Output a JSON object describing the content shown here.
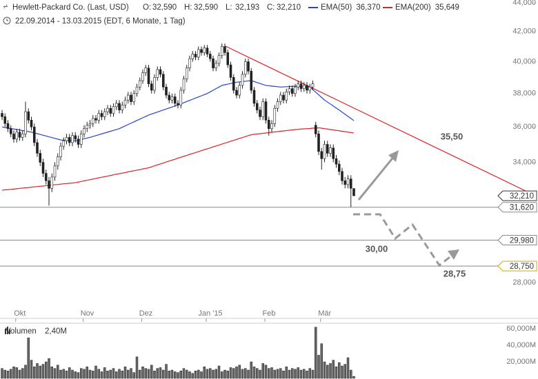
{
  "chart_data": [
    {
      "type": "candlestick",
      "title": "Hewlett-Packard Co. (Last, USD)",
      "quote": [
        {
          "key": "O:",
          "label": "32,590"
        },
        {
          "key": "H:",
          "label": "32,590"
        },
        {
          "key": "L:",
          "label": "32,193"
        },
        {
          "key": "C:",
          "label": "32,210"
        }
      ],
      "subtitle": "22.09.2014 - 13.03.2015 (EDT, 6 Monate, 1 Tag)",
      "categories": [
        null,
        null,
        null,
        null,
        null,
        null,
        null,
        "Okt",
        null,
        null,
        null,
        null,
        null,
        null,
        null,
        null,
        null,
        null,
        null,
        null,
        null,
        null,
        null,
        null,
        null,
        null,
        null,
        null,
        null,
        null,
        "Nov",
        null,
        null,
        null,
        null,
        null,
        null,
        null,
        null,
        null,
        null,
        null,
        null,
        null,
        null,
        null,
        null,
        null,
        null,
        null,
        "Dez",
        null,
        null,
        null,
        null,
        null,
        null,
        null,
        null,
        null,
        null,
        null,
        null,
        null,
        null,
        null,
        null,
        null,
        null,
        null,
        null,
        null,
        "Jan '15",
        null,
        null,
        null,
        null,
        null,
        null,
        null,
        null,
        null,
        null,
        null,
        null,
        null,
        null,
        null,
        null,
        null,
        null,
        null,
        "Feb",
        null,
        null,
        null,
        null,
        null,
        null,
        null,
        null,
        null,
        null,
        null,
        null,
        null,
        null,
        null,
        null,
        null,
        null,
        "Mär",
        null,
        null,
        null,
        null,
        null,
        null,
        null,
        null,
        null
      ],
      "open": [
        36.8,
        36.6,
        36.2,
        35.9,
        35.6,
        35.3,
        35.7,
        35.4,
        35.6,
        36.9,
        36.4,
        36.0,
        35.1,
        34.5,
        34.0,
        33.4,
        33.0,
        32.6,
        33.2,
        33.8,
        34.3,
        34.9,
        35.2,
        35.4,
        35.1,
        35.5,
        35.3,
        35.0,
        35.6,
        35.9,
        36.1,
        36.2,
        36.5,
        36.4,
        36.8,
        36.6,
        36.9,
        37.1,
        36.8,
        37.2,
        37.4,
        37.0,
        37.3,
        37.6,
        37.9,
        37.5,
        38.0,
        38.4,
        38.8,
        39.3,
        39.6,
        38.6,
        38.2,
        39.0,
        39.5,
        39.2,
        38.4,
        37.9,
        37.6,
        37.8,
        37.4,
        37.3,
        38.2,
        38.9,
        39.6,
        40.2,
        40.5,
        40.3,
        40.8,
        40.6,
        40.9,
        40.5,
        40.2,
        39.6,
        39.9,
        40.4,
        41.0,
        40.6,
        39.8,
        39.0,
        38.2,
        37.9,
        38.5,
        39.2,
        40.0,
        39.4,
        38.2,
        37.4,
        37.0,
        36.6,
        37.5,
        36.4,
        35.9,
        36.2,
        37.1,
        37.5,
        37.9,
        37.6,
        38.1,
        38.3,
        38.0,
        38.4,
        38.6,
        38.3,
        38.5,
        38.2,
        38.4,
        36.1,
        35.6,
        34.6,
        34.2,
        35.0,
        34.5,
        34.8,
        34.2,
        33.9,
        33.5,
        33.0,
        32.8,
        33.1,
        32.59
      ],
      "high": [
        37.0,
        36.8,
        36.4,
        36.1,
        35.8,
        35.9,
        35.9,
        35.8,
        37.5,
        37.1,
        36.6,
        36.2,
        35.3,
        34.7,
        34.2,
        33.6,
        33.2,
        33.4,
        34.0,
        34.5,
        35.1,
        35.4,
        35.6,
        35.6,
        35.7,
        35.7,
        35.5,
        35.8,
        36.1,
        36.3,
        36.4,
        36.7,
        36.7,
        37.0,
        37.0,
        37.1,
        37.3,
        37.3,
        37.4,
        37.6,
        37.6,
        37.5,
        37.8,
        38.1,
        38.1,
        38.2,
        38.6,
        39.0,
        39.5,
        39.8,
        39.8,
        38.8,
        39.2,
        39.7,
        39.7,
        39.4,
        38.6,
        38.1,
        38.0,
        38.0,
        37.6,
        38.4,
        39.1,
        39.8,
        40.4,
        40.7,
        40.7,
        41.0,
        41.0,
        41.1,
        41.1,
        40.7,
        40.4,
        40.1,
        40.6,
        41.2,
        41.2,
        40.8,
        40.0,
        39.2,
        38.4,
        38.7,
        39.4,
        40.2,
        40.2,
        39.6,
        38.4,
        37.6,
        37.2,
        37.7,
        37.7,
        36.6,
        36.4,
        37.3,
        37.7,
        38.1,
        38.1,
        38.3,
        38.5,
        38.5,
        38.6,
        38.8,
        38.8,
        38.7,
        38.7,
        38.6,
        38.8,
        36.3,
        35.8,
        34.8,
        35.2,
        35.2,
        35.0,
        35.0,
        34.4,
        34.1,
        33.7,
        33.2,
        33.3,
        33.3,
        32.59
      ],
      "low": [
        36.4,
        36.0,
        35.7,
        35.4,
        35.1,
        35.1,
        35.2,
        35.2,
        35.4,
        36.2,
        35.8,
        34.9,
        34.3,
        33.8,
        33.2,
        32.8,
        31.7,
        32.4,
        33.0,
        33.6,
        34.1,
        34.7,
        35.0,
        34.9,
        34.9,
        35.1,
        34.8,
        34.8,
        35.4,
        35.7,
        35.9,
        36.0,
        36.2,
        36.2,
        36.4,
        36.4,
        36.7,
        36.6,
        36.6,
        37.0,
        36.8,
        36.8,
        37.1,
        37.4,
        37.3,
        37.3,
        37.8,
        38.2,
        38.6,
        39.1,
        38.4,
        38.0,
        38.0,
        38.8,
        39.0,
        38.2,
        37.7,
        37.4,
        37.4,
        37.2,
        37.1,
        37.1,
        38.0,
        38.7,
        39.4,
        40.0,
        40.1,
        40.1,
        40.4,
        40.4,
        40.3,
        40.0,
        39.4,
        39.4,
        39.7,
        40.2,
        40.4,
        39.6,
        38.8,
        38.0,
        37.7,
        37.7,
        38.3,
        39.0,
        39.2,
        38.0,
        37.2,
        36.8,
        36.4,
        36.4,
        36.2,
        35.5,
        35.7,
        36.0,
        36.9,
        37.3,
        37.4,
        37.4,
        37.9,
        37.8,
        37.8,
        38.2,
        38.1,
        38.1,
        38.0,
        38.0,
        38.2,
        35.4,
        34.4,
        33.6,
        34.0,
        34.3,
        34.3,
        34.0,
        33.7,
        33.3,
        32.8,
        32.6,
        32.6,
        31.62,
        32.193
      ],
      "close": [
        36.6,
        36.2,
        35.9,
        35.6,
        35.3,
        35.7,
        35.4,
        35.6,
        36.9,
        36.4,
        36.0,
        35.1,
        34.5,
        34.0,
        33.4,
        33.0,
        32.6,
        33.2,
        33.8,
        34.3,
        34.9,
        35.2,
        35.4,
        35.1,
        35.5,
        35.3,
        35.0,
        35.6,
        35.9,
        36.1,
        36.2,
        36.5,
        36.4,
        36.8,
        36.6,
        36.9,
        37.1,
        36.8,
        37.2,
        37.4,
        37.0,
        37.3,
        37.6,
        37.9,
        37.5,
        38.0,
        38.4,
        38.8,
        39.3,
        39.6,
        38.6,
        38.2,
        39.0,
        39.5,
        39.2,
        38.4,
        37.9,
        37.6,
        37.8,
        37.4,
        37.3,
        38.2,
        38.9,
        39.6,
        40.2,
        40.5,
        40.3,
        40.8,
        40.6,
        40.9,
        40.5,
        40.2,
        39.6,
        39.9,
        40.4,
        41.0,
        40.6,
        39.8,
        39.0,
        38.2,
        37.9,
        38.5,
        39.2,
        40.0,
        39.4,
        38.2,
        37.4,
        37.0,
        36.6,
        37.5,
        36.4,
        35.9,
        36.2,
        37.1,
        37.5,
        37.9,
        37.6,
        38.1,
        38.3,
        38.0,
        38.4,
        38.6,
        38.3,
        38.5,
        38.2,
        38.4,
        38.6,
        35.6,
        34.6,
        34.2,
        35.0,
        34.5,
        34.8,
        34.2,
        33.9,
        33.5,
        33.0,
        32.8,
        33.1,
        32.6,
        32.21
      ],
      "last_label": "32,210",
      "series": [
        {
          "name": "EMA(50)",
          "color": "#2244cc",
          "value_label": "36,370",
          "values": [
            36.0,
            35.97,
            35.94,
            35.91,
            35.88,
            35.85,
            35.82,
            35.79,
            35.76,
            35.73,
            35.7,
            35.66,
            35.61,
            35.57,
            35.52,
            35.48,
            35.43,
            35.39,
            35.34,
            35.3,
            35.25,
            35.24,
            35.23,
            35.22,
            35.21,
            35.2,
            35.24,
            35.28,
            35.32,
            35.36,
            35.4,
            35.45,
            35.5,
            35.55,
            35.6,
            35.65,
            35.7,
            35.75,
            35.8,
            35.85,
            35.9,
            35.98,
            36.06,
            36.14,
            36.22,
            36.3,
            36.38,
            36.46,
            36.54,
            36.62,
            36.7,
            36.76,
            36.82,
            36.88,
            36.94,
            37.0,
            37.06,
            37.12,
            37.18,
            37.24,
            37.3,
            37.37,
            37.44,
            37.51,
            37.58,
            37.65,
            37.72,
            37.79,
            37.86,
            37.93,
            38.0,
            38.1,
            38.2,
            38.3,
            38.4,
            38.5,
            38.54,
            38.58,
            38.62,
            38.66,
            38.7,
            38.72,
            38.74,
            38.76,
            38.78,
            38.8,
            38.74,
            38.68,
            38.62,
            38.56,
            38.5,
            38.48,
            38.46,
            38.44,
            38.42,
            38.4,
            38.41,
            38.42,
            38.43,
            38.44,
            38.45,
            38.44,
            38.43,
            38.42,
            38.41,
            38.4,
            38.24,
            38.08,
            37.92,
            37.76,
            37.6,
            37.48,
            37.36,
            37.24,
            37.12,
            37.0,
            36.87,
            36.75,
            36.62,
            36.5,
            36.37
          ]
        },
        {
          "name": "EMA(200)",
          "color": "#dd2222",
          "value_label": "35,649",
          "values": [
            32.5,
            32.52,
            32.53,
            32.55,
            32.56,
            32.58,
            32.6,
            32.61,
            32.63,
            32.64,
            32.66,
            32.68,
            32.69,
            32.71,
            32.72,
            32.74,
            32.76,
            32.77,
            32.79,
            32.8,
            32.82,
            32.84,
            32.85,
            32.87,
            32.88,
            32.9,
            32.93,
            32.96,
            33.0,
            33.03,
            33.06,
            33.09,
            33.12,
            33.16,
            33.19,
            33.22,
            33.25,
            33.28,
            33.32,
            33.35,
            33.38,
            33.41,
            33.44,
            33.48,
            33.51,
            33.54,
            33.57,
            33.6,
            33.64,
            33.67,
            33.7,
            33.75,
            33.81,
            33.86,
            33.91,
            33.96,
            34.02,
            34.07,
            34.12,
            34.17,
            34.23,
            34.28,
            34.33,
            34.38,
            34.44,
            34.49,
            34.54,
            34.59,
            34.65,
            34.7,
            34.75,
            34.8,
            34.86,
            34.91,
            34.96,
            35.02,
            35.07,
            35.12,
            35.18,
            35.23,
            35.28,
            35.34,
            35.39,
            35.44,
            35.5,
            35.55,
            35.57,
            35.59,
            35.61,
            35.63,
            35.65,
            35.67,
            35.69,
            35.71,
            35.73,
            35.75,
            35.77,
            35.79,
            35.81,
            35.83,
            35.85,
            35.86,
            35.88,
            35.89,
            35.9,
            35.91,
            35.93,
            35.94,
            35.95,
            35.93,
            35.9,
            35.88,
            35.85,
            35.83,
            35.8,
            35.78,
            35.75,
            35.73,
            35.7,
            35.68,
            35.649
          ]
        }
      ],
      "ylim": [
        26.42,
        44.2
      ],
      "log_scale": true,
      "yticks": [
        {
          "value": 44,
          "label": "44,000"
        },
        {
          "value": 42,
          "label": "42,000"
        },
        {
          "value": 40,
          "label": "40,000"
        },
        {
          "value": 38,
          "label": "38,000"
        },
        {
          "value": 36,
          "label": "36,000"
        },
        {
          "value": 34,
          "label": "34,000"
        },
        {
          "value": 28,
          "label": "28,000"
        }
      ],
      "levels": [
        {
          "value": 31.62,
          "label": "31,620"
        },
        {
          "value": 29.98,
          "label": "29,980"
        },
        {
          "value": 28.75,
          "label": "28,750"
        }
      ],
      "annotations": [
        "35,50",
        "30,00",
        "28,75"
      ]
    },
    {
      "type": "bar",
      "name": "Volumen",
      "value_label": "2,40M",
      "color": "#666666",
      "values": [
        12,
        10,
        9,
        11,
        14,
        13,
        10,
        12,
        16,
        49,
        22,
        14,
        18,
        15,
        17,
        20,
        24,
        14,
        12,
        16,
        10,
        11,
        9,
        13,
        10,
        8,
        7,
        12,
        11,
        14,
        10,
        9,
        15,
        11,
        8,
        13,
        9,
        10,
        12,
        8,
        11,
        9,
        14,
        10,
        12,
        7,
        26,
        10,
        14,
        12,
        11,
        16,
        9,
        12,
        13,
        10,
        17,
        9,
        10,
        8,
        7,
        9,
        12,
        10,
        8,
        6,
        9,
        10,
        8,
        14,
        11,
        12,
        10,
        11,
        15,
        8,
        10,
        9,
        13,
        12,
        14,
        16,
        11,
        12,
        10,
        20,
        14,
        12,
        10,
        18,
        16,
        12,
        13,
        10,
        11,
        12,
        9,
        14,
        10,
        12,
        11,
        13,
        10,
        11,
        9,
        12,
        10,
        62,
        28,
        42,
        20,
        16,
        18,
        22,
        14,
        19,
        15,
        17,
        25,
        10,
        2.4
      ],
      "ylim": [
        0,
        66
      ],
      "yticks": [
        {
          "value": 60,
          "label": "60,000M"
        },
        {
          "value": 40,
          "label": "40,000M"
        },
        {
          "value": 20,
          "label": "20,000M"
        }
      ]
    }
  ]
}
